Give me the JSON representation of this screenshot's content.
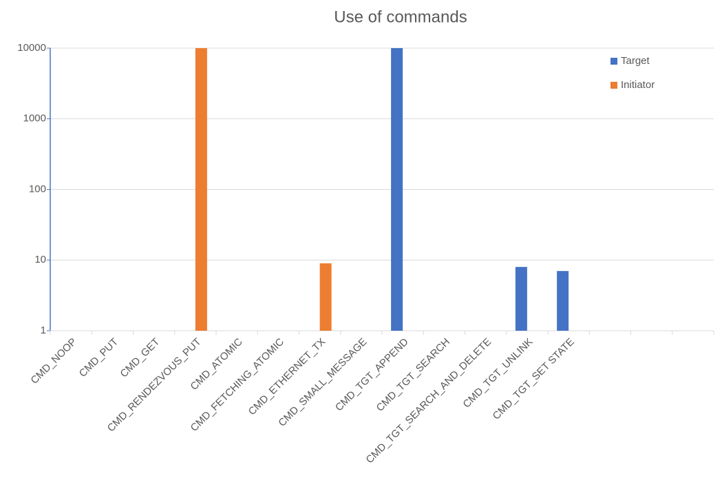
{
  "chart_data": {
    "type": "bar",
    "title": "Use of commands",
    "categories": [
      "CMD_NOOP",
      "CMD_PUT",
      "CMD_GET",
      "CMD_RENDEZVOUS_PUT",
      "CMD_ATOMIC",
      "CMD_FETCHING_ATOMIC",
      "CMD_ETHERNET_TX",
      "CMD_SMALL_MESSAGE",
      "CMD_TGT_APPEND",
      "CMD_TGT_SEARCH",
      "CMD_TGT_SEARCH_AND_DELETE",
      "CMD_TGT_UNLINK",
      "CMD_TGT_SET STATE",
      null,
      null,
      null
    ],
    "series": [
      {
        "name": "Target",
        "color": "#4472c4",
        "values": [
          null,
          null,
          null,
          null,
          null,
          null,
          null,
          null,
          10000,
          null,
          null,
          8,
          7,
          null,
          null,
          null
        ]
      },
      {
        "name": "Initiator",
        "color": "#ed7d31",
        "values": [
          null,
          null,
          null,
          10000,
          null,
          null,
          9,
          null,
          null,
          null,
          null,
          null,
          null,
          null,
          null,
          null
        ]
      }
    ],
    "ylim": [
      1,
      10000
    ],
    "yticks": [
      1,
      10,
      100,
      1000,
      10000
    ],
    "log_scale": true,
    "grid": true,
    "legend": "top-right"
  }
}
